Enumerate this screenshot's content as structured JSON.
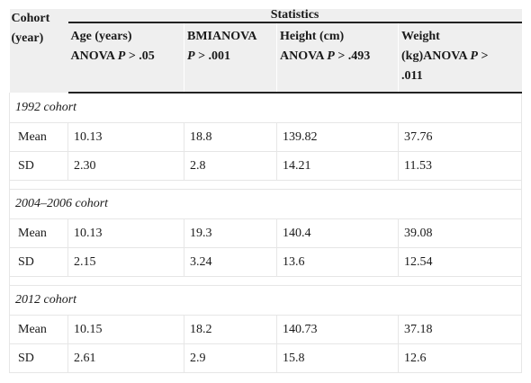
{
  "header": {
    "cohort_label_line1": "Cohort",
    "cohort_label_line2": "(year)",
    "statistics_label": "Statistics",
    "columns": [
      {
        "line1": "Age (years)",
        "line2_prefix": "ANOVA ",
        "p": "P",
        "line2_suffix": " > .05"
      },
      {
        "line1": "BMIANOVA",
        "line2_prefix": "",
        "p": "P",
        "line2_suffix": " > .001"
      },
      {
        "line1": "Height (cm)",
        "line2_prefix": "ANOVA ",
        "p": "P",
        "line2_suffix": " > .493"
      },
      {
        "line1": "Weight",
        "line2_prefix": "(kg)ANOVA ",
        "p": "P",
        "line2_suffix": " >",
        "line3": ".011"
      }
    ]
  },
  "groups": [
    {
      "name": "1992 cohort",
      "rows": [
        {
          "label": "Mean",
          "values": [
            "10.13",
            "18.8",
            "139.82",
            "37.76"
          ]
        },
        {
          "label": "SD",
          "values": [
            "2.30",
            "2.8",
            "14.21",
            "11.53"
          ]
        }
      ]
    },
    {
      "name": "2004–2006 cohort",
      "rows": [
        {
          "label": "Mean",
          "values": [
            "10.13",
            "19.3",
            "140.4",
            "39.08"
          ]
        },
        {
          "label": "SD",
          "values": [
            "2.15",
            "3.24",
            "13.6",
            "12.54"
          ]
        }
      ]
    },
    {
      "name": "2012 cohort",
      "rows": [
        {
          "label": "Mean",
          "values": [
            "10.15",
            "18.2",
            "140.73",
            "37.18"
          ]
        },
        {
          "label": "SD",
          "values": [
            "2.61",
            "2.9",
            "15.8",
            "12.6"
          ]
        }
      ]
    }
  ]
}
